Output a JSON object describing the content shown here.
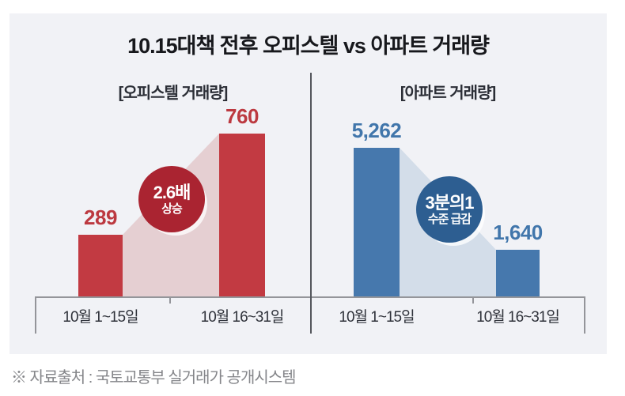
{
  "title": "10.15대책 전후 오피스텔 vs 아파트 거래량",
  "source_note": "※ 자료출처 : 국토교통부 실거래가 공개시스템",
  "layout_hints": {
    "grid": false,
    "legend": false,
    "panel_bg": "#f1f2f6",
    "divider_between_charts": true
  },
  "chart_data": [
    {
      "type": "bar",
      "title": "[오피스텔 거래량]",
      "categories": [
        "10월 1~15일",
        "10월 16~31일"
      ],
      "values": [
        289,
        760
      ],
      "value_labels": [
        "289",
        "760"
      ],
      "annotation": {
        "line1": "2.6배",
        "line2": "상승"
      },
      "colors": {
        "bar": "#c23a42",
        "area": "#e5cfd2",
        "badge": "#aa2431",
        "value_label": "#bc3940"
      }
    },
    {
      "type": "bar",
      "title": "[아파트 거래량]",
      "categories": [
        "10월 1~15일",
        "10월 16~31일"
      ],
      "values": [
        5262,
        1640
      ],
      "value_labels": [
        "5,262",
        "1,640"
      ],
      "annotation": {
        "line1": "3분의1",
        "line2": "수준 급감"
      },
      "colors": {
        "bar": "#4678ad",
        "area": "#d3dde9",
        "badge": "#2d5e91",
        "value_label": "#4176ab"
      }
    }
  ]
}
